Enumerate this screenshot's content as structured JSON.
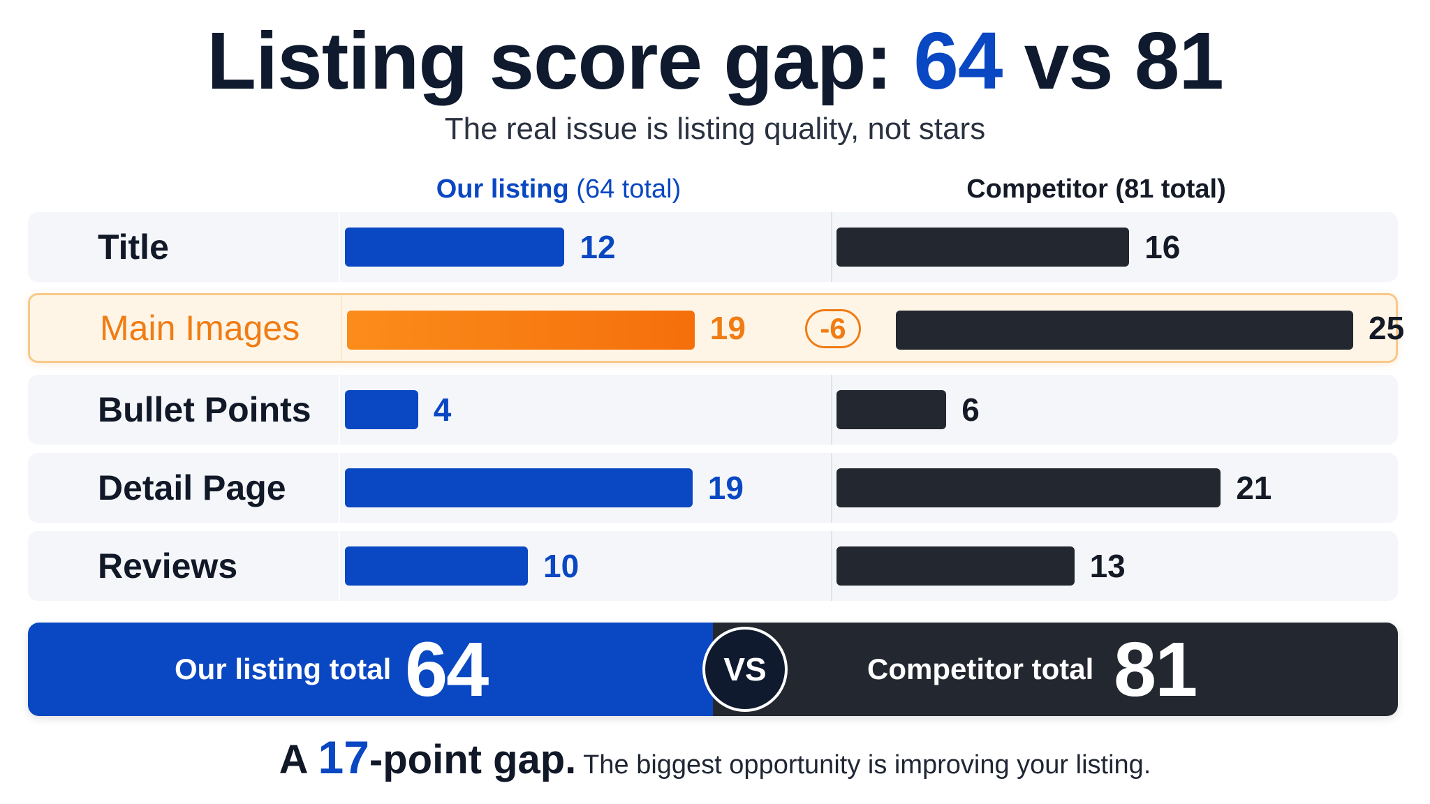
{
  "title": {
    "prefix": "Listing score gap: ",
    "ours": "64",
    "middle": " vs ",
    "comp": "81"
  },
  "subtitle": "The real issue is listing quality, not stars",
  "chart_data": {
    "type": "bar",
    "orientation": "horizontal",
    "categories": [
      "Title",
      "Main Images",
      "Bullet Points",
      "Detail Page",
      "Reviews"
    ],
    "series": [
      {
        "name": "Our listing",
        "values": [
          12,
          19,
          4,
          19,
          10
        ]
      },
      {
        "name": "Competitor",
        "values": [
          16,
          25,
          6,
          21,
          13
        ]
      }
    ],
    "highlight": {
      "category": "Main Images",
      "gap_label": "-6"
    },
    "headers": {
      "ours_name": "Our listing",
      "ours_total": "(64 total)",
      "comp_name": "Competitor",
      "comp_total": "(81 total)"
    }
  },
  "totals": {
    "ours_label": "Our listing total",
    "ours_value": "64",
    "vs": "VS",
    "comp_label": "Competitor total",
    "comp_value": "81"
  },
  "footer": {
    "a": "A ",
    "num": "17",
    "point": "-point gap.",
    "rest": " The biggest opportunity is improving your listing."
  },
  "colors": {
    "ours": "#0a47c2",
    "comp": "#222730",
    "highlight": "#f07c14",
    "row_bg": "#f4f6f9"
  }
}
